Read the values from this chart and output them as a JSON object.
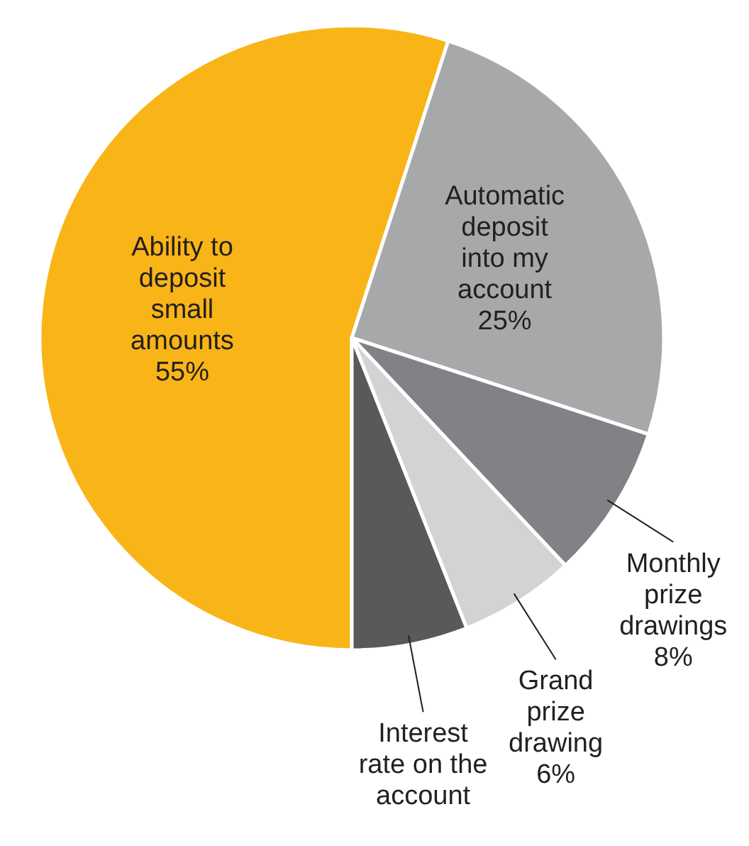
{
  "chart_data": {
    "type": "pie",
    "categories": [
      "Ability to deposit small amounts",
      "Automatic deposit into my account",
      "Monthly prize drawings",
      "Grand prize drawing",
      "Interest rate on the account"
    ],
    "values": [
      55,
      25,
      8,
      6,
      6
    ],
    "colors": [
      "#f9b418",
      "#a7a8aa",
      "#808285",
      "#d1d3d4",
      "#58595b"
    ],
    "value_labels": [
      "55%",
      "25%",
      "8%",
      "6%",
      null
    ]
  }
}
